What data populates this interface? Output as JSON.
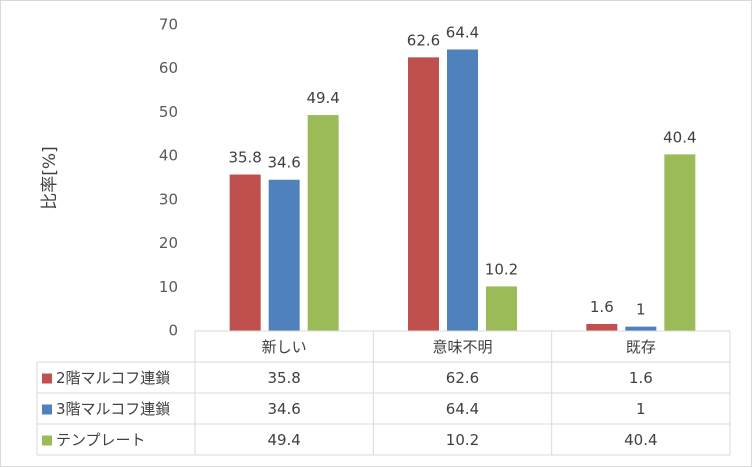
{
  "chart_data": {
    "type": "bar",
    "title": "",
    "ylabel": "比率[%]",
    "xlabel": "",
    "ylim": [
      0,
      70
    ],
    "yticks": [
      0,
      10,
      20,
      30,
      40,
      50,
      60,
      70
    ],
    "grid": false,
    "legend": "data-table",
    "categories": [
      "新しい",
      "意味不明",
      "既存"
    ],
    "series": [
      {
        "name": "2階マルコフ連鎖",
        "color": "#c0504d",
        "values": [
          35.8,
          62.6,
          1.6
        ],
        "labels": [
          "35.8",
          "62.6",
          "1.6"
        ]
      },
      {
        "name": "3階マルコフ連鎖",
        "color": "#4f81bd",
        "values": [
          34.6,
          64.4,
          1
        ],
        "labels": [
          "34.6",
          "64.4",
          "1"
        ]
      },
      {
        "name": "テンプレート",
        "color": "#9bbb59",
        "values": [
          49.4,
          10.2,
          40.4
        ],
        "labels": [
          "49.4",
          "10.2",
          "40.4"
        ]
      }
    ]
  }
}
